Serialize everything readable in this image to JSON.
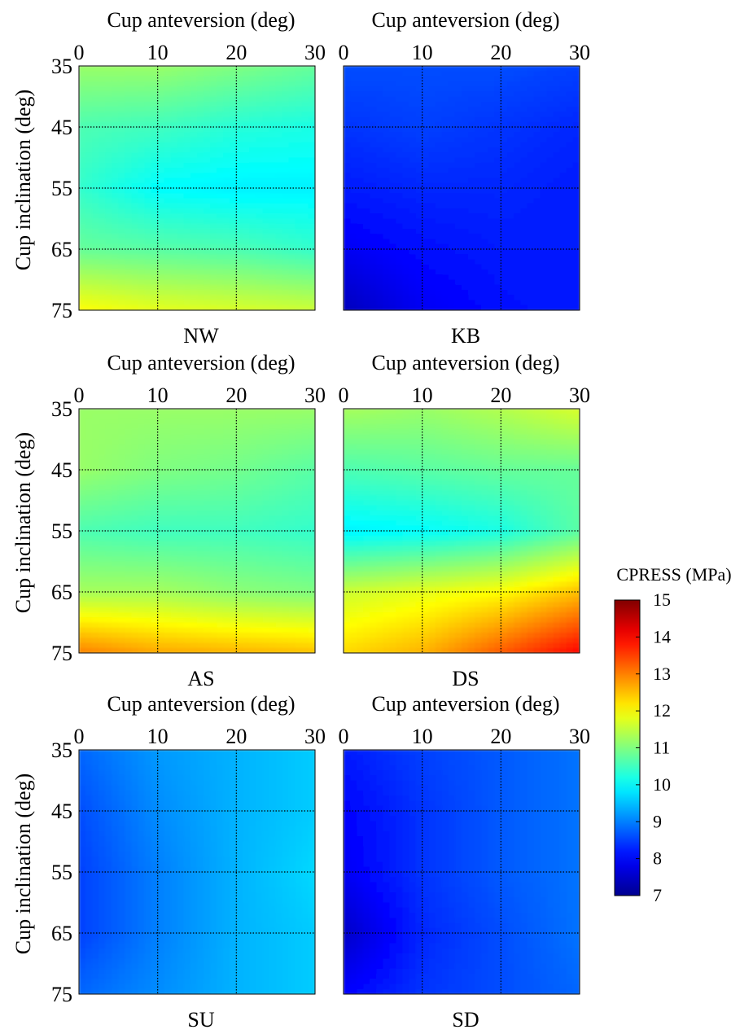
{
  "chart_data": {
    "type": "heatmap",
    "x_label": "Cup anteversion (deg)",
    "y_label": "Cup inclination (deg)",
    "x_ticks": [
      0,
      10,
      20,
      30
    ],
    "y_ticks": [
      35,
      45,
      55,
      65,
      75
    ],
    "xlim": [
      0,
      30
    ],
    "ylim": [
      35,
      75
    ],
    "colorbar": {
      "label": "CPRESS (MPa)",
      "ticks": [
        7,
        8,
        9,
        10,
        11,
        12,
        13,
        14,
        15
      ],
      "range": [
        7,
        15
      ],
      "colormap": [
        "#00008f",
        "#0000ff",
        "#00ffff",
        "#ffff00",
        "#ff0000",
        "#800000"
      ]
    },
    "panels": [
      {
        "name": "NW",
        "grid": [
          [
            11.2,
            11.2,
            11.0,
            10.8
          ],
          [
            10.6,
            10.5,
            10.3,
            10.2
          ],
          [
            10.4,
            10.0,
            9.9,
            9.9
          ],
          [
            10.8,
            10.7,
            10.6,
            10.4
          ],
          [
            12.0,
            11.8,
            11.7,
            11.6
          ]
        ]
      },
      {
        "name": "KB",
        "grid": [
          [
            8.6,
            8.6,
            8.6,
            8.5
          ],
          [
            8.4,
            8.5,
            8.4,
            8.3
          ],
          [
            8.2,
            8.3,
            8.3,
            8.2
          ],
          [
            7.9,
            8.1,
            8.2,
            8.2
          ],
          [
            7.4,
            7.9,
            8.1,
            8.2
          ]
        ]
      },
      {
        "name": "AS",
        "grid": [
          [
            11.2,
            11.2,
            11.2,
            11.2
          ],
          [
            11.2,
            11.0,
            10.9,
            10.7
          ],
          [
            10.6,
            10.5,
            10.5,
            10.4
          ],
          [
            11.3,
            11.3,
            11.1,
            11.0
          ],
          [
            13.0,
            12.7,
            12.6,
            12.5
          ]
        ]
      },
      {
        "name": "DS",
        "grid": [
          [
            11.3,
            11.2,
            11.4,
            11.7
          ],
          [
            10.6,
            10.7,
            10.8,
            10.8
          ],
          [
            9.9,
            10.0,
            10.2,
            10.7
          ],
          [
            11.6,
            11.8,
            12.0,
            12.5
          ],
          [
            12.3,
            12.6,
            13.3,
            14.0
          ]
        ]
      },
      {
        "name": "SU",
        "grid": [
          [
            8.8,
            9.2,
            9.4,
            9.6
          ],
          [
            8.6,
            9.1,
            9.4,
            9.6
          ],
          [
            8.5,
            9.0,
            9.4,
            9.7
          ],
          [
            8.5,
            9.0,
            9.4,
            9.6
          ],
          [
            8.8,
            9.1,
            9.4,
            9.6
          ]
        ]
      },
      {
        "name": "SD",
        "grid": [
          [
            8.2,
            8.5,
            8.7,
            8.9
          ],
          [
            8.0,
            8.4,
            8.7,
            8.9
          ],
          [
            7.9,
            8.4,
            8.7,
            8.9
          ],
          [
            7.5,
            8.3,
            8.6,
            8.9
          ],
          [
            8.0,
            8.4,
            8.6,
            8.8
          ]
        ]
      }
    ]
  }
}
